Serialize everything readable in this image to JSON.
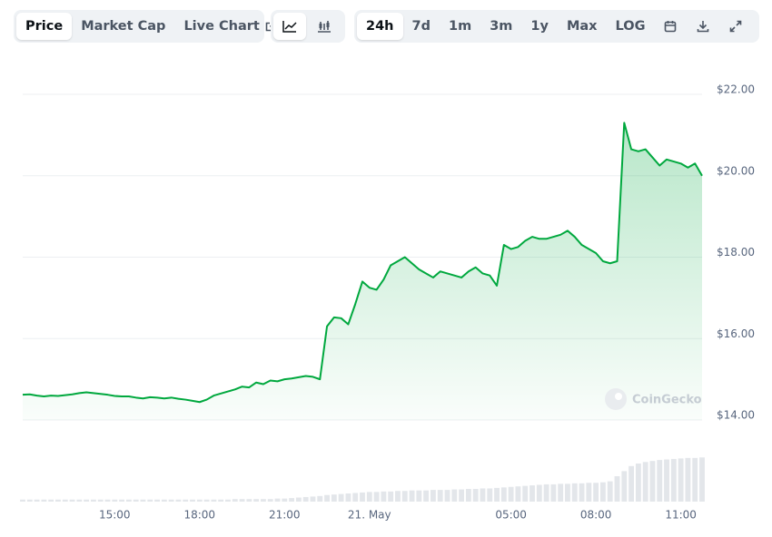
{
  "toolbar": {
    "views": [
      "Price",
      "Market Cap",
      "Live Chart"
    ],
    "ranges": [
      "24h",
      "7d",
      "1m",
      "3m",
      "1y",
      "Max",
      "LOG"
    ]
  },
  "chart_data": {
    "type": "line",
    "watermark": "CoinGecko",
    "categories": [
      null,
      null,
      null,
      null,
      null,
      null,
      null,
      null,
      null,
      null,
      null,
      null,
      null,
      "15:00",
      null,
      null,
      null,
      null,
      null,
      null,
      null,
      null,
      null,
      null,
      null,
      "18:00",
      null,
      null,
      null,
      null,
      null,
      null,
      null,
      null,
      null,
      null,
      null,
      "21:00",
      null,
      null,
      null,
      null,
      null,
      null,
      null,
      null,
      null,
      null,
      null,
      "21. May",
      null,
      null,
      null,
      null,
      null,
      null,
      null,
      null,
      null,
      null,
      null,
      null,
      null,
      null,
      null,
      null,
      null,
      null,
      null,
      "05:00",
      null,
      null,
      null,
      null,
      null,
      null,
      null,
      null,
      null,
      null,
      null,
      "08:00",
      null,
      null,
      null,
      null,
      null,
      null,
      null,
      null,
      null,
      null,
      null,
      "11:00",
      null,
      null,
      null
    ],
    "series": [
      {
        "color": "#00a83e",
        "values": [
          14.62,
          14.63,
          14.6,
          14.58,
          14.6,
          14.59,
          14.61,
          14.63,
          14.66,
          14.68,
          14.66,
          14.64,
          14.62,
          14.59,
          14.58,
          14.58,
          14.55,
          14.53,
          14.56,
          14.55,
          14.53,
          14.55,
          14.52,
          14.5,
          14.47,
          14.44,
          14.5,
          14.6,
          14.65,
          14.7,
          14.75,
          14.82,
          14.8,
          14.92,
          14.88,
          14.97,
          14.95,
          15.0,
          15.02,
          15.05,
          15.08,
          15.06,
          15.0,
          16.3,
          16.52,
          16.5,
          16.35,
          16.85,
          17.4,
          17.25,
          17.2,
          17.45,
          17.8,
          17.9,
          18.0,
          17.85,
          17.7,
          17.6,
          17.5,
          17.65,
          17.6,
          17.55,
          17.5,
          17.65,
          17.75,
          17.6,
          17.55,
          17.3,
          18.3,
          18.2,
          18.25,
          18.4,
          18.5,
          18.45,
          18.45,
          18.5,
          18.55,
          18.65,
          18.5,
          18.3,
          18.2,
          18.1,
          17.9,
          17.85,
          17.9,
          21.3,
          20.65,
          20.6,
          20.65,
          20.45,
          20.25,
          20.4,
          20.35,
          20.3,
          20.2,
          20.3,
          20.0
        ]
      },
      {
        "color": "#e3e6ea",
        "axis": "y2",
        "values": [
          4,
          4,
          4,
          4,
          4,
          4,
          4,
          4,
          4,
          4,
          4,
          4,
          4,
          4,
          4,
          4,
          4,
          4,
          4,
          4,
          4,
          4,
          4,
          4,
          4,
          4,
          4,
          4,
          4,
          4,
          5,
          5,
          5,
          5,
          5,
          5,
          6,
          6,
          7,
          8,
          9,
          10,
          11,
          13,
          14,
          15,
          16,
          17,
          18,
          19,
          19,
          20,
          20,
          21,
          21,
          22,
          22,
          22,
          23,
          23,
          23,
          24,
          24,
          25,
          25,
          26,
          26,
          27,
          28,
          29,
          30,
          31,
          32,
          33,
          34,
          34,
          35,
          35,
          36,
          36,
          37,
          37,
          38,
          40,
          50,
          60,
          70,
          75,
          78,
          80,
          82,
          83,
          84,
          85,
          86,
          86,
          87
        ]
      }
    ],
    "ylim": [
      14,
      22
    ],
    "yticks": [
      {
        "value": 14,
        "label": "$14.00"
      },
      {
        "value": 16,
        "label": "$16.00"
      },
      {
        "value": 18,
        "label": "$18.00"
      },
      {
        "value": 20,
        "label": "$20.00"
      },
      {
        "value": 22,
        "label": "$22.00"
      }
    ],
    "y2lim": [
      0,
      100
    ],
    "grid": true
  }
}
